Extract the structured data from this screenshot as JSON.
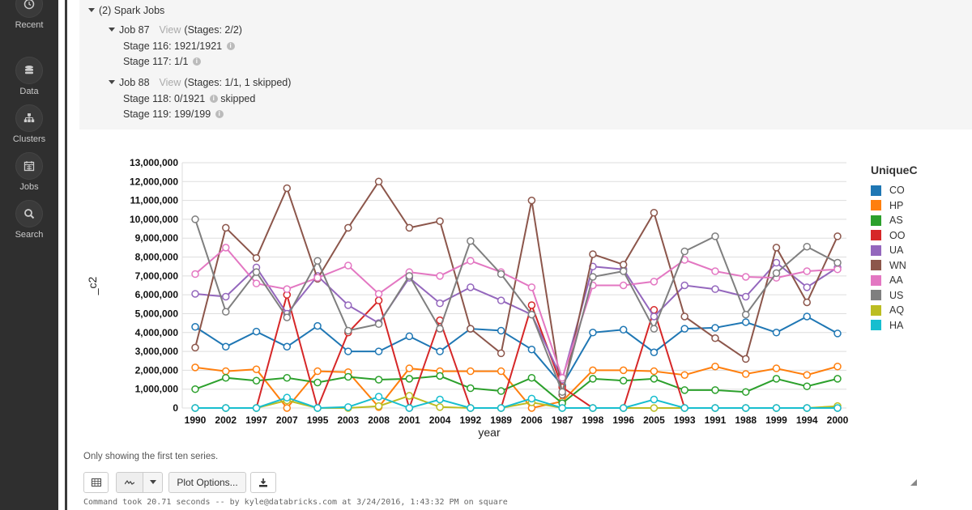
{
  "sidebar": {
    "items": [
      {
        "label": "Recent",
        "icon": "clock-icon"
      },
      {
        "label": "Data",
        "icon": "database-icon"
      },
      {
        "label": "Clusters",
        "icon": "sitemap-icon"
      },
      {
        "label": "Jobs",
        "icon": "calendar-icon"
      },
      {
        "label": "Search",
        "icon": "search-icon"
      }
    ]
  },
  "spark": {
    "header": "(2) Spark Jobs",
    "jobs": [
      {
        "name": "Job 87",
        "view": "View",
        "stages_summary": "(Stages: 2/2)",
        "stages": [
          {
            "label": "Stage 116: 1921/1921",
            "note": ""
          },
          {
            "label": "Stage 117: 1/1",
            "note": ""
          }
        ]
      },
      {
        "name": "Job 88",
        "view": "View",
        "stages_summary": "(Stages: 1/1, 1 skipped)",
        "stages": [
          {
            "label": "Stage 118: 0/1921",
            "note": "skipped"
          },
          {
            "label": "Stage 119: 199/199",
            "note": ""
          }
        ]
      }
    ]
  },
  "chart_data": {
    "type": "line",
    "title": "",
    "xlabel": "year",
    "ylabel": "_c2",
    "ylim": [
      0,
      13000000
    ],
    "yticks": [
      "0",
      "1,000,000",
      "2,000,000",
      "3,000,000",
      "4,000,000",
      "5,000,000",
      "6,000,000",
      "7,000,000",
      "8,000,000",
      "9,000,000",
      "10,000,000",
      "11,000,000",
      "12,000,000",
      "13,000,000"
    ],
    "grid": true,
    "legend_title": "UniqueC",
    "legend_position": "right",
    "categories": [
      "1990",
      "2002",
      "1997",
      "2007",
      "1995",
      "2003",
      "2008",
      "2001",
      "2004",
      "1992",
      "1989",
      "2006",
      "1987",
      "1998",
      "1996",
      "2005",
      "1993",
      "1991",
      "1988",
      "1999",
      "1994",
      "2000"
    ],
    "series": [
      {
        "name": "CO",
        "color": "#1f77b4",
        "values": [
          4300000,
          3250000,
          4050000,
          3250000,
          4350000,
          3000000,
          3000000,
          3800000,
          3000000,
          4200000,
          4100000,
          3100000,
          1200000,
          4000000,
          4150000,
          2950000,
          4200000,
          4250000,
          4550000,
          4000000,
          4850000,
          3950000
        ]
      },
      {
        "name": "HP",
        "color": "#ff7f0e",
        "values": [
          2150000,
          1950000,
          2050000,
          0,
          1950000,
          1900000,
          50000,
          2100000,
          1950000,
          1950000,
          1950000,
          0,
          350000,
          2000000,
          2000000,
          1950000,
          1750000,
          2200000,
          1800000,
          2100000,
          1750000,
          2200000
        ]
      },
      {
        "name": "AS",
        "color": "#2ca02c",
        "values": [
          1000000,
          1600000,
          1450000,
          1600000,
          1350000,
          1650000,
          1500000,
          1550000,
          1700000,
          1050000,
          900000,
          1600000,
          250000,
          1550000,
          1450000,
          1550000,
          950000,
          950000,
          850000,
          1550000,
          1150000,
          1550000
        ]
      },
      {
        "name": "OO",
        "color": "#d62728",
        "values": [
          0,
          0,
          0,
          6000000,
          0,
          4000000,
          5700000,
          0,
          4650000,
          0,
          0,
          5450000,
          1100000,
          0,
          0,
          5200000,
          0,
          0,
          0,
          0,
          0,
          0
        ]
      },
      {
        "name": "UA",
        "color": "#9467bd",
        "values": [
          6050000,
          5900000,
          7450000,
          5000000,
          7000000,
          5450000,
          4500000,
          6900000,
          5550000,
          6400000,
          5700000,
          4950000,
          1500000,
          7500000,
          7350000,
          4850000,
          6500000,
          6300000,
          5900000,
          7700000,
          6400000,
          7450000
        ]
      },
      {
        "name": "WN",
        "color": "#8c564b",
        "values": [
          3200000,
          9550000,
          7950000,
          11650000,
          6850000,
          9550000,
          12000000,
          9550000,
          9900000,
          4200000,
          2900000,
          11000000,
          700000,
          8150000,
          7600000,
          10350000,
          4850000,
          3700000,
          2600000,
          8500000,
          5600000,
          9100000
        ]
      },
      {
        "name": "AA",
        "color": "#e377c2",
        "values": [
          7100000,
          8500000,
          6600000,
          6300000,
          6900000,
          7550000,
          6050000,
          7200000,
          7000000,
          7800000,
          7200000,
          6400000,
          1600000,
          6500000,
          6500000,
          6700000,
          7850000,
          7250000,
          6950000,
          6900000,
          7250000,
          7350000
        ]
      },
      {
        "name": "US",
        "color": "#7f7f7f",
        "values": [
          10000000,
          5100000,
          7200000,
          4800000,
          7800000,
          4100000,
          4450000,
          7000000,
          4200000,
          8850000,
          7100000,
          4950000,
          850000,
          6950000,
          7250000,
          4200000,
          8300000,
          9100000,
          4950000,
          7150000,
          8550000,
          7700000
        ]
      },
      {
        "name": "AQ",
        "color": "#bcbd22",
        "values": [
          0,
          0,
          0,
          400000,
          0,
          0,
          100000,
          650000,
          50000,
          0,
          0,
          300000,
          0,
          0,
          0,
          0,
          0,
          0,
          0,
          0,
          0,
          100000
        ]
      },
      {
        "name": "HA",
        "color": "#17becf",
        "values": [
          0,
          0,
          0,
          550000,
          0,
          50000,
          600000,
          0,
          450000,
          0,
          0,
          500000,
          0,
          0,
          0,
          450000,
          0,
          0,
          0,
          0,
          0,
          0
        ]
      }
    ]
  },
  "footer": {
    "note": "Only showing the first ten series.",
    "plot_options_label": "Plot Options...",
    "command": "Command took 20.71 seconds -- by kyle@databricks.com at 3/24/2016, 1:43:32 PM on square"
  }
}
